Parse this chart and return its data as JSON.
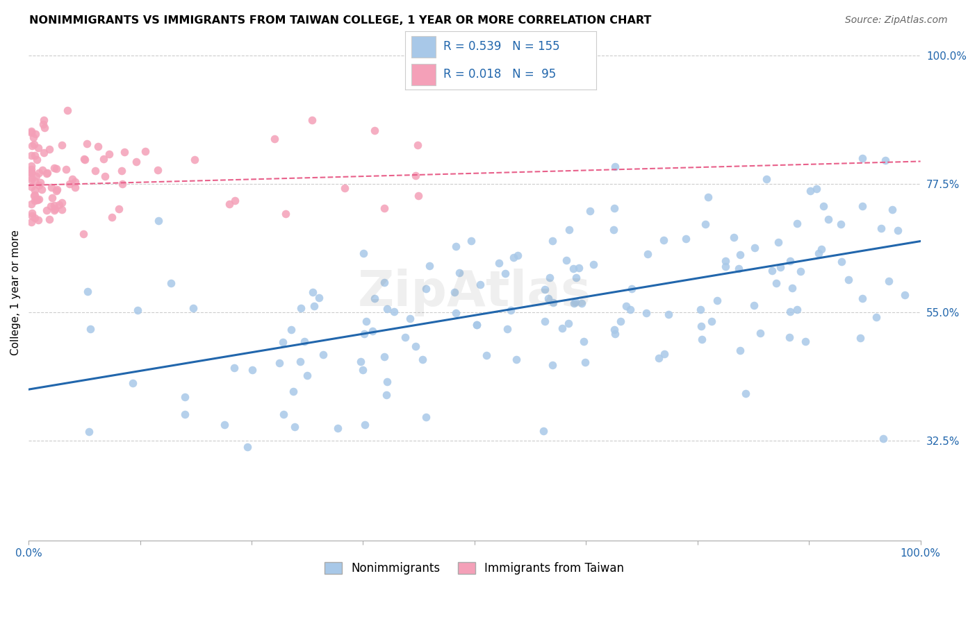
{
  "title": "NONIMMIGRANTS VS IMMIGRANTS FROM TAIWAN COLLEGE, 1 YEAR OR MORE CORRELATION CHART",
  "source": "Source: ZipAtlas.com",
  "ylabel": "College, 1 year or more",
  "xlim": [
    0.0,
    1.0
  ],
  "ylim": [
    0.15,
    1.02
  ],
  "xticks": [
    0.0,
    0.125,
    0.25,
    0.375,
    0.5,
    0.625,
    0.75,
    0.875,
    1.0
  ],
  "xticklabels": [
    "0.0%",
    "",
    "",
    "",
    "",
    "",
    "",
    "",
    "100.0%"
  ],
  "ytick_positions": [
    0.325,
    0.55,
    0.775,
    1.0
  ],
  "ytick_labels": [
    "32.5%",
    "55.0%",
    "77.5%",
    "100.0%"
  ],
  "blue_color": "#a8c8e8",
  "pink_color": "#f4a0b8",
  "blue_line_color": "#2166ac",
  "pink_line_color": "#e8608a",
  "R_blue": 0.539,
  "N_blue": 155,
  "R_pink": 0.018,
  "N_pink": 95,
  "legend_label_blue": "Nonimmigrants",
  "legend_label_pink": "Immigrants from Taiwan",
  "watermark": "ZipAtlas",
  "blue_trendline_y0": 0.415,
  "blue_trendline_y1": 0.675,
  "pink_trendline_y0": 0.773,
  "pink_trendline_y1": 0.815,
  "grid_color": "#cccccc",
  "grid_linestyle": "--",
  "title_fontsize": 11.5,
  "source_fontsize": 10,
  "tick_fontsize": 11,
  "ylabel_fontsize": 11,
  "legend_fontsize": 12
}
